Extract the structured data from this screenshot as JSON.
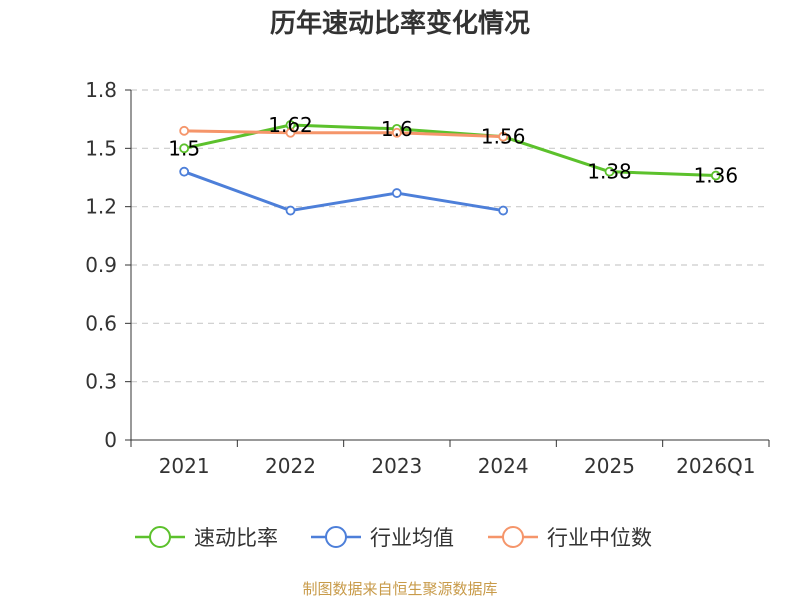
{
  "chart_data": {
    "type": "line",
    "title": "历年速动比率变化情况",
    "categories": [
      "2021",
      "2022",
      "2023",
      "2024",
      "2025",
      "2026Q1"
    ],
    "ylim": [
      0,
      1.8
    ],
    "yticks": [
      "0",
      "0.3",
      "0.6",
      "0.9",
      "1.2",
      "1.5",
      "1.8"
    ],
    "grid": true,
    "legend_position": "bottom",
    "series": [
      {
        "name": "速动比率",
        "color": "#5cc12c",
        "values": [
          1.5,
          1.62,
          1.6,
          1.56,
          1.38,
          1.36
        ],
        "labels": [
          "1.5",
          "1.62",
          "1.6",
          "1.56",
          "1.38",
          "1.36"
        ]
      },
      {
        "name": "行业均值",
        "color": "#4d7fd9",
        "values": [
          1.38,
          1.18,
          1.27,
          1.18,
          null,
          null
        ]
      },
      {
        "name": "行业中位数",
        "color": "#f5956a",
        "values": [
          1.59,
          1.58,
          1.58,
          1.56,
          null,
          null
        ]
      }
    ],
    "source": "制图数据来自恒生聚源数据库"
  }
}
